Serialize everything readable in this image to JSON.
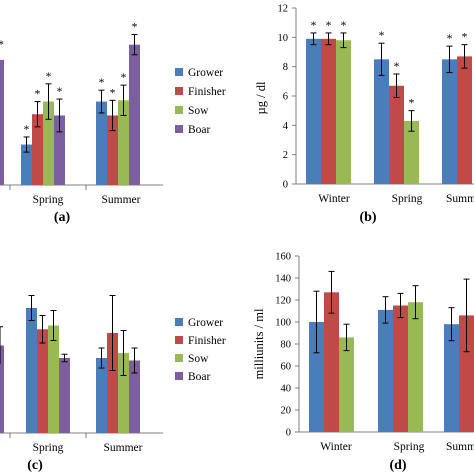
{
  "colors": {
    "Grower": "#4a7ebb",
    "Finisher": "#be4b48",
    "Sow": "#98b954",
    "Boar": "#7d5fa0"
  },
  "chart_data": [
    {
      "panel": "(a)",
      "type": "bar",
      "categories": [
        "Spring",
        "Summer"
      ],
      "series": [
        {
          "name": "Grower",
          "values": [
            3.2,
            6.6
          ],
          "err": [
            0.6,
            0.9
          ],
          "sig": [
            true,
            true
          ]
        },
        {
          "name": "Finisher",
          "values": [
            5.6,
            5.5
          ],
          "err": [
            1.0,
            1.2
          ],
          "sig": [
            true,
            true
          ]
        },
        {
          "name": "Sow",
          "values": [
            6.6,
            6.7
          ],
          "err": [
            1.4,
            1.2
          ],
          "sig": [
            true,
            true
          ]
        },
        {
          "name": "Boar",
          "values": [
            5.5,
            11.1
          ],
          "err": [
            1.3,
            0.8
          ],
          "sig": [
            true,
            true
          ]
        }
      ],
      "left_partial": {
        "value": 9.9,
        "sig": true
      },
      "ylim": [
        0,
        14
      ],
      "legend": "right"
    },
    {
      "panel": "(b)",
      "type": "bar",
      "ylabel": "µg / dl",
      "categories": [
        "Winter",
        "Spring",
        "Summ"
      ],
      "series": [
        {
          "name": "Grower",
          "values": [
            9.9,
            8.5,
            8.5
          ],
          "err": [
            0.4,
            1.1,
            0.9
          ],
          "sig": [
            true,
            true,
            true
          ]
        },
        {
          "name": "Finisher",
          "values": [
            9.9,
            6.7,
            8.7
          ],
          "err": [
            0.4,
            0.8,
            0.8
          ],
          "sig": [
            true,
            true,
            true
          ]
        },
        {
          "name": "Sow",
          "values": [
            9.8,
            4.3,
            null
          ],
          "err": [
            0.5,
            0.7,
            null
          ],
          "sig": [
            true,
            true,
            false
          ]
        }
      ],
      "ylim": [
        0,
        12
      ],
      "yticks": [
        0,
        2,
        4,
        6,
        8,
        10,
        12
      ]
    },
    {
      "panel": "(c)",
      "type": "bar",
      "categories": [
        "Spring",
        "Summer"
      ],
      "series": [
        {
          "name": "Grower",
          "values": [
            10.0,
            6.0
          ],
          "err": [
            1.0,
            0.8
          ]
        },
        {
          "name": "Finisher",
          "values": [
            8.3,
            8.0
          ],
          "err": [
            1.1,
            3.0
          ]
        },
        {
          "name": "Sow",
          "values": [
            8.6,
            6.4
          ],
          "err": [
            1.2,
            1.8
          ]
        },
        {
          "name": "Boar",
          "values": [
            6.0,
            5.8
          ],
          "err": [
            0.3,
            1.0
          ]
        }
      ],
      "left_partial": {
        "value": 7.0,
        "err": 1.5
      },
      "ylim": [
        0,
        14
      ],
      "legend": "right"
    },
    {
      "panel": "(d)",
      "type": "bar",
      "ylabel": "milliunits / ml",
      "categories": [
        "Winter",
        "Spring",
        "Summ"
      ],
      "series": [
        {
          "name": "Grower",
          "values": [
            100,
            111,
            98
          ],
          "err": [
            28,
            12,
            15
          ]
        },
        {
          "name": "Finisher",
          "values": [
            127,
            115,
            106
          ],
          "err": [
            19,
            11,
            33
          ]
        },
        {
          "name": "Sow",
          "values": [
            86,
            118,
            null
          ],
          "err": [
            12,
            15,
            null
          ]
        }
      ],
      "ylim": [
        0,
        160
      ],
      "yticks": [
        0,
        20,
        40,
        60,
        80,
        100,
        120,
        140,
        160
      ]
    }
  ]
}
